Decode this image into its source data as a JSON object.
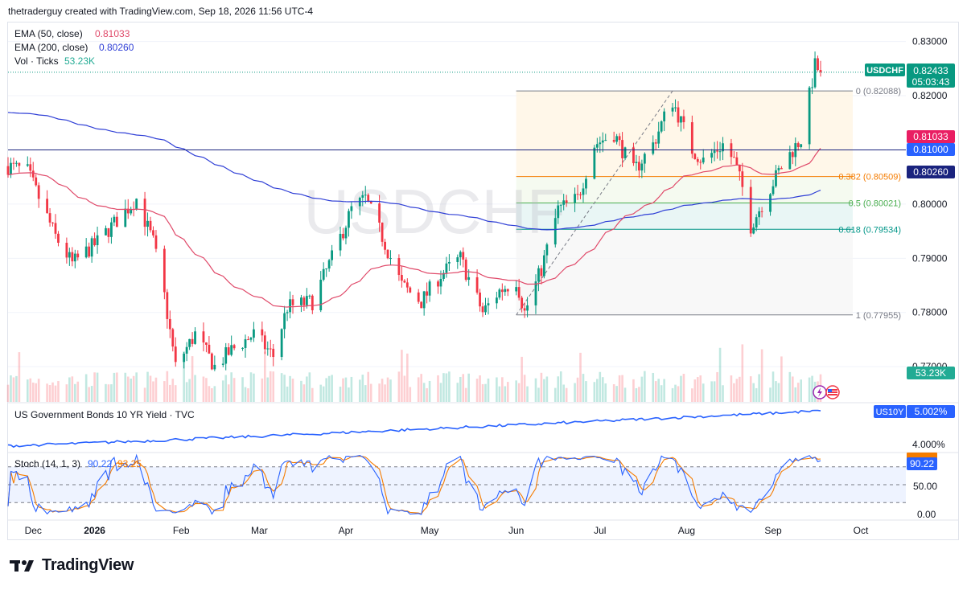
{
  "header": {
    "text": "thetraderguy created with TradingView.com, Sep 18, 2026 11:56 UTC-4"
  },
  "watermark": "USDCHF",
  "footer": {
    "brand": "TradingView"
  },
  "legend": {
    "ema50": {
      "label": "EMA (50, close)",
      "value": "0.81033",
      "color": "#e04a6a"
    },
    "ema200": {
      "label": "EMA (200, close)",
      "value": "0.80260",
      "color": "#2f3fd6"
    },
    "vol": {
      "label": "Vol · Ticks",
      "value": "53.23K",
      "color": "#22ab94"
    }
  },
  "price_tags": {
    "symbol": "USDCHF",
    "last": "0.82433",
    "countdown": "05:03:43",
    "ema50": "0.81033",
    "level": "0.81000",
    "ema200": "0.80260",
    "volume": "53.23K"
  },
  "bond_panel": {
    "title": "US Government Bonds 10 YR Yield · TVC",
    "symbol": "US10Y",
    "value": "5.002%",
    "tick": "4.000%"
  },
  "stoch_panel": {
    "title": "Stoch (14, 1, 3)",
    "k": "90.22",
    "d": "93.25",
    "tag": "90.22",
    "ticks": [
      "50.00",
      "0.00"
    ],
    "k_color": "#2962ff",
    "d_color": "#f57c00"
  },
  "chart_data": {
    "type": "candlestick",
    "symbol": "USDCHF",
    "timeframe": "daily",
    "x_labels": [
      "Dec",
      "2026",
      "Feb",
      "Mar",
      "Apr",
      "May",
      "Jun",
      "Jul",
      "Aug",
      "Sep",
      "Oct"
    ],
    "y_ticks": [
      "0.83000",
      "0.82000",
      "0.80000",
      "0.79000",
      "0.78000",
      "0.77000"
    ],
    "ylim": [
      0.7635,
      0.8335
    ],
    "key_points": [
      [
        "Dec-01",
        0.807
      ],
      [
        "Dec-08",
        0.806
      ],
      [
        "Dec-18",
        0.794
      ],
      [
        "Dec-24",
        0.789
      ],
      [
        "Jan-02",
        0.793
      ],
      [
        "Jan-09",
        0.797
      ],
      [
        "Jan-16",
        0.801
      ],
      [
        "Jan-22",
        0.793
      ],
      [
        "Jan-26",
        0.783
      ],
      [
        "Jan-30",
        0.77
      ],
      [
        "Feb-06",
        0.776
      ],
      [
        "Feb-13",
        0.77
      ],
      [
        "Feb-19",
        0.773
      ],
      [
        "Feb-27",
        0.776
      ],
      [
        "Mar-06",
        0.772
      ],
      [
        "Mar-11",
        0.781
      ],
      [
        "Mar-20",
        0.782
      ],
      [
        "Mar-27",
        0.79
      ],
      [
        "Apr-03",
        0.799
      ],
      [
        "Apr-08",
        0.801
      ],
      [
        "Apr-14",
        0.794
      ],
      [
        "Apr-21",
        0.785
      ],
      [
        "Apr-28",
        0.782
      ],
      [
        "May-05",
        0.787
      ],
      [
        "May-12",
        0.79
      ],
      [
        "May-20",
        0.78
      ],
      [
        "May-26",
        0.784
      ],
      [
        "Jun-01",
        0.786
      ],
      [
        "Jun-04",
        0.78
      ],
      [
        "Jun-10",
        0.788
      ],
      [
        "Jun-16",
        0.799
      ],
      [
        "Jun-23",
        0.801
      ],
      [
        "Jun-29",
        0.811
      ],
      [
        "Jul-06",
        0.813
      ],
      [
        "Jul-13",
        0.806
      ],
      [
        "Jul-20",
        0.811
      ],
      [
        "Jul-24",
        0.816
      ],
      [
        "Jul-27",
        0.819
      ],
      [
        "Aug-03",
        0.81
      ],
      [
        "Aug-07",
        0.808
      ],
      [
        "Aug-14",
        0.811
      ],
      [
        "Aug-18",
        0.808
      ],
      [
        "Aug-21",
        0.803
      ],
      [
        "Aug-24",
        0.796
      ],
      [
        "Aug-28",
        0.8
      ],
      [
        "Sep-03",
        0.806
      ],
      [
        "Sep-08",
        0.81
      ],
      [
        "Sep-11",
        0.812
      ],
      [
        "Sep-14",
        0.82
      ],
      [
        "Sep-16",
        0.8255
      ],
      [
        "Sep-18",
        0.82433
      ]
    ],
    "ema50": {
      "name": "EMA (50, close)",
      "last": 0.81033
    },
    "ema200": {
      "name": "EMA (200, close)",
      "last": 0.8026
    },
    "horizontal_levels": [
      0.81
    ],
    "fibonacci": {
      "levels": [
        {
          "ratio": "0",
          "price": 0.82088,
          "label": "0 (0.82088)",
          "color": "#787b86"
        },
        {
          "ratio": "0.382",
          "price": 0.80509,
          "label": "0.382 (0.80509)",
          "color": "#f57c00"
        },
        {
          "ratio": "0.5",
          "price": 0.80021,
          "label": "0.5 (0.80021)",
          "color": "#4caf50"
        },
        {
          "ratio": "0.618",
          "price": 0.79534,
          "label": "0.618 (0.79534)",
          "color": "#009688"
        },
        {
          "ratio": "1",
          "price": 0.77955,
          "label": "1 (0.77955)",
          "color": "#787b86"
        }
      ]
    },
    "volume_last": "53.23K",
    "us10y": {
      "last": 5.002,
      "tick": 4.0
    },
    "stoch": {
      "k_last": 90.22,
      "d_last": 93.25,
      "bands": [
        80,
        50,
        20
      ]
    }
  }
}
